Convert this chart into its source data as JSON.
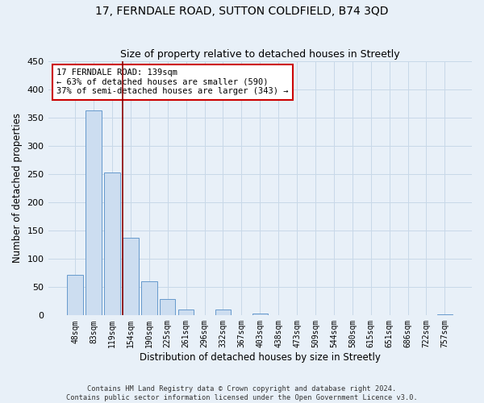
{
  "title": "17, FERNDALE ROAD, SUTTON COLDFIELD, B74 3QD",
  "subtitle": "Size of property relative to detached houses in Streetly",
  "xlabel": "Distribution of detached houses by size in Streetly",
  "ylabel": "Number of detached properties",
  "bar_labels": [
    "48sqm",
    "83sqm",
    "119sqm",
    "154sqm",
    "190sqm",
    "225sqm",
    "261sqm",
    "296sqm",
    "332sqm",
    "367sqm",
    "403sqm",
    "438sqm",
    "473sqm",
    "509sqm",
    "544sqm",
    "580sqm",
    "615sqm",
    "651sqm",
    "686sqm",
    "722sqm",
    "757sqm"
  ],
  "bar_values": [
    72,
    363,
    253,
    137,
    60,
    29,
    10,
    0,
    10,
    0,
    4,
    0,
    0,
    0,
    0,
    0,
    0,
    0,
    0,
    0,
    2
  ],
  "bar_color": "#ccddf0",
  "bar_edgecolor": "#6699cc",
  "ylim": [
    0,
    450
  ],
  "yticks": [
    0,
    50,
    100,
    150,
    200,
    250,
    300,
    350,
    400,
    450
  ],
  "vline_color": "#8b0000",
  "vline_x": 2.57,
  "annotation_line1": "17 FERNDALE ROAD: 139sqm",
  "annotation_line2": "← 63% of detached houses are smaller (590)",
  "annotation_line3": "37% of semi-detached houses are larger (343) →",
  "annotation_box_color": "white",
  "annotation_box_edgecolor": "#cc0000",
  "grid_color": "#c8d8e8",
  "background_color": "#e8f0f8",
  "title_fontsize": 10,
  "subtitle_fontsize": 9,
  "footer_line1": "Contains HM Land Registry data © Crown copyright and database right 2024.",
  "footer_line2": "Contains public sector information licensed under the Open Government Licence v3.0."
}
